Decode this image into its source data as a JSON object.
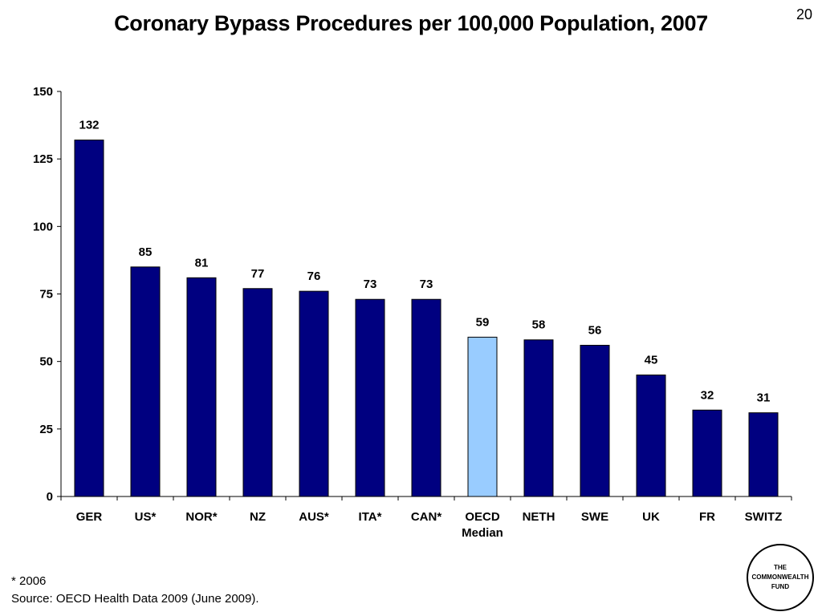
{
  "page_number": "20",
  "title": "Coronary Bypass Procedures per 100,000 Population, 2007",
  "footnotes": {
    "note": "* 2006",
    "source": "Source: OECD Health Data 2009 (June 2009)."
  },
  "logo": {
    "lines": [
      "THE",
      "COMMONWEALTH",
      "FUND"
    ]
  },
  "colors": {
    "bar": "#000080",
    "highlight": "#99ccff"
  },
  "chart_data": {
    "type": "bar",
    "title": "Coronary Bypass Procedures per 100,000 Population, 2007",
    "categories": [
      "GER",
      "US*",
      "NOR*",
      "NZ",
      "AUS*",
      "ITA*",
      "CAN*",
      "OECD Median",
      "NETH",
      "SWE",
      "UK",
      "FR",
      "SWITZ"
    ],
    "values": [
      132,
      85,
      81,
      77,
      76,
      73,
      73,
      59,
      58,
      56,
      45,
      32,
      31
    ],
    "data_labels": [
      "132",
      "85",
      "81",
      "77",
      "76",
      "73",
      "73",
      "59",
      "58",
      "56",
      "45",
      "32",
      "31"
    ],
    "highlight_category": "OECD Median",
    "ylim": [
      0,
      150
    ],
    "yticks": [
      0,
      25,
      50,
      75,
      100,
      125,
      150
    ],
    "xlabel": "",
    "ylabel": "",
    "grid": false,
    "legend": "none"
  }
}
